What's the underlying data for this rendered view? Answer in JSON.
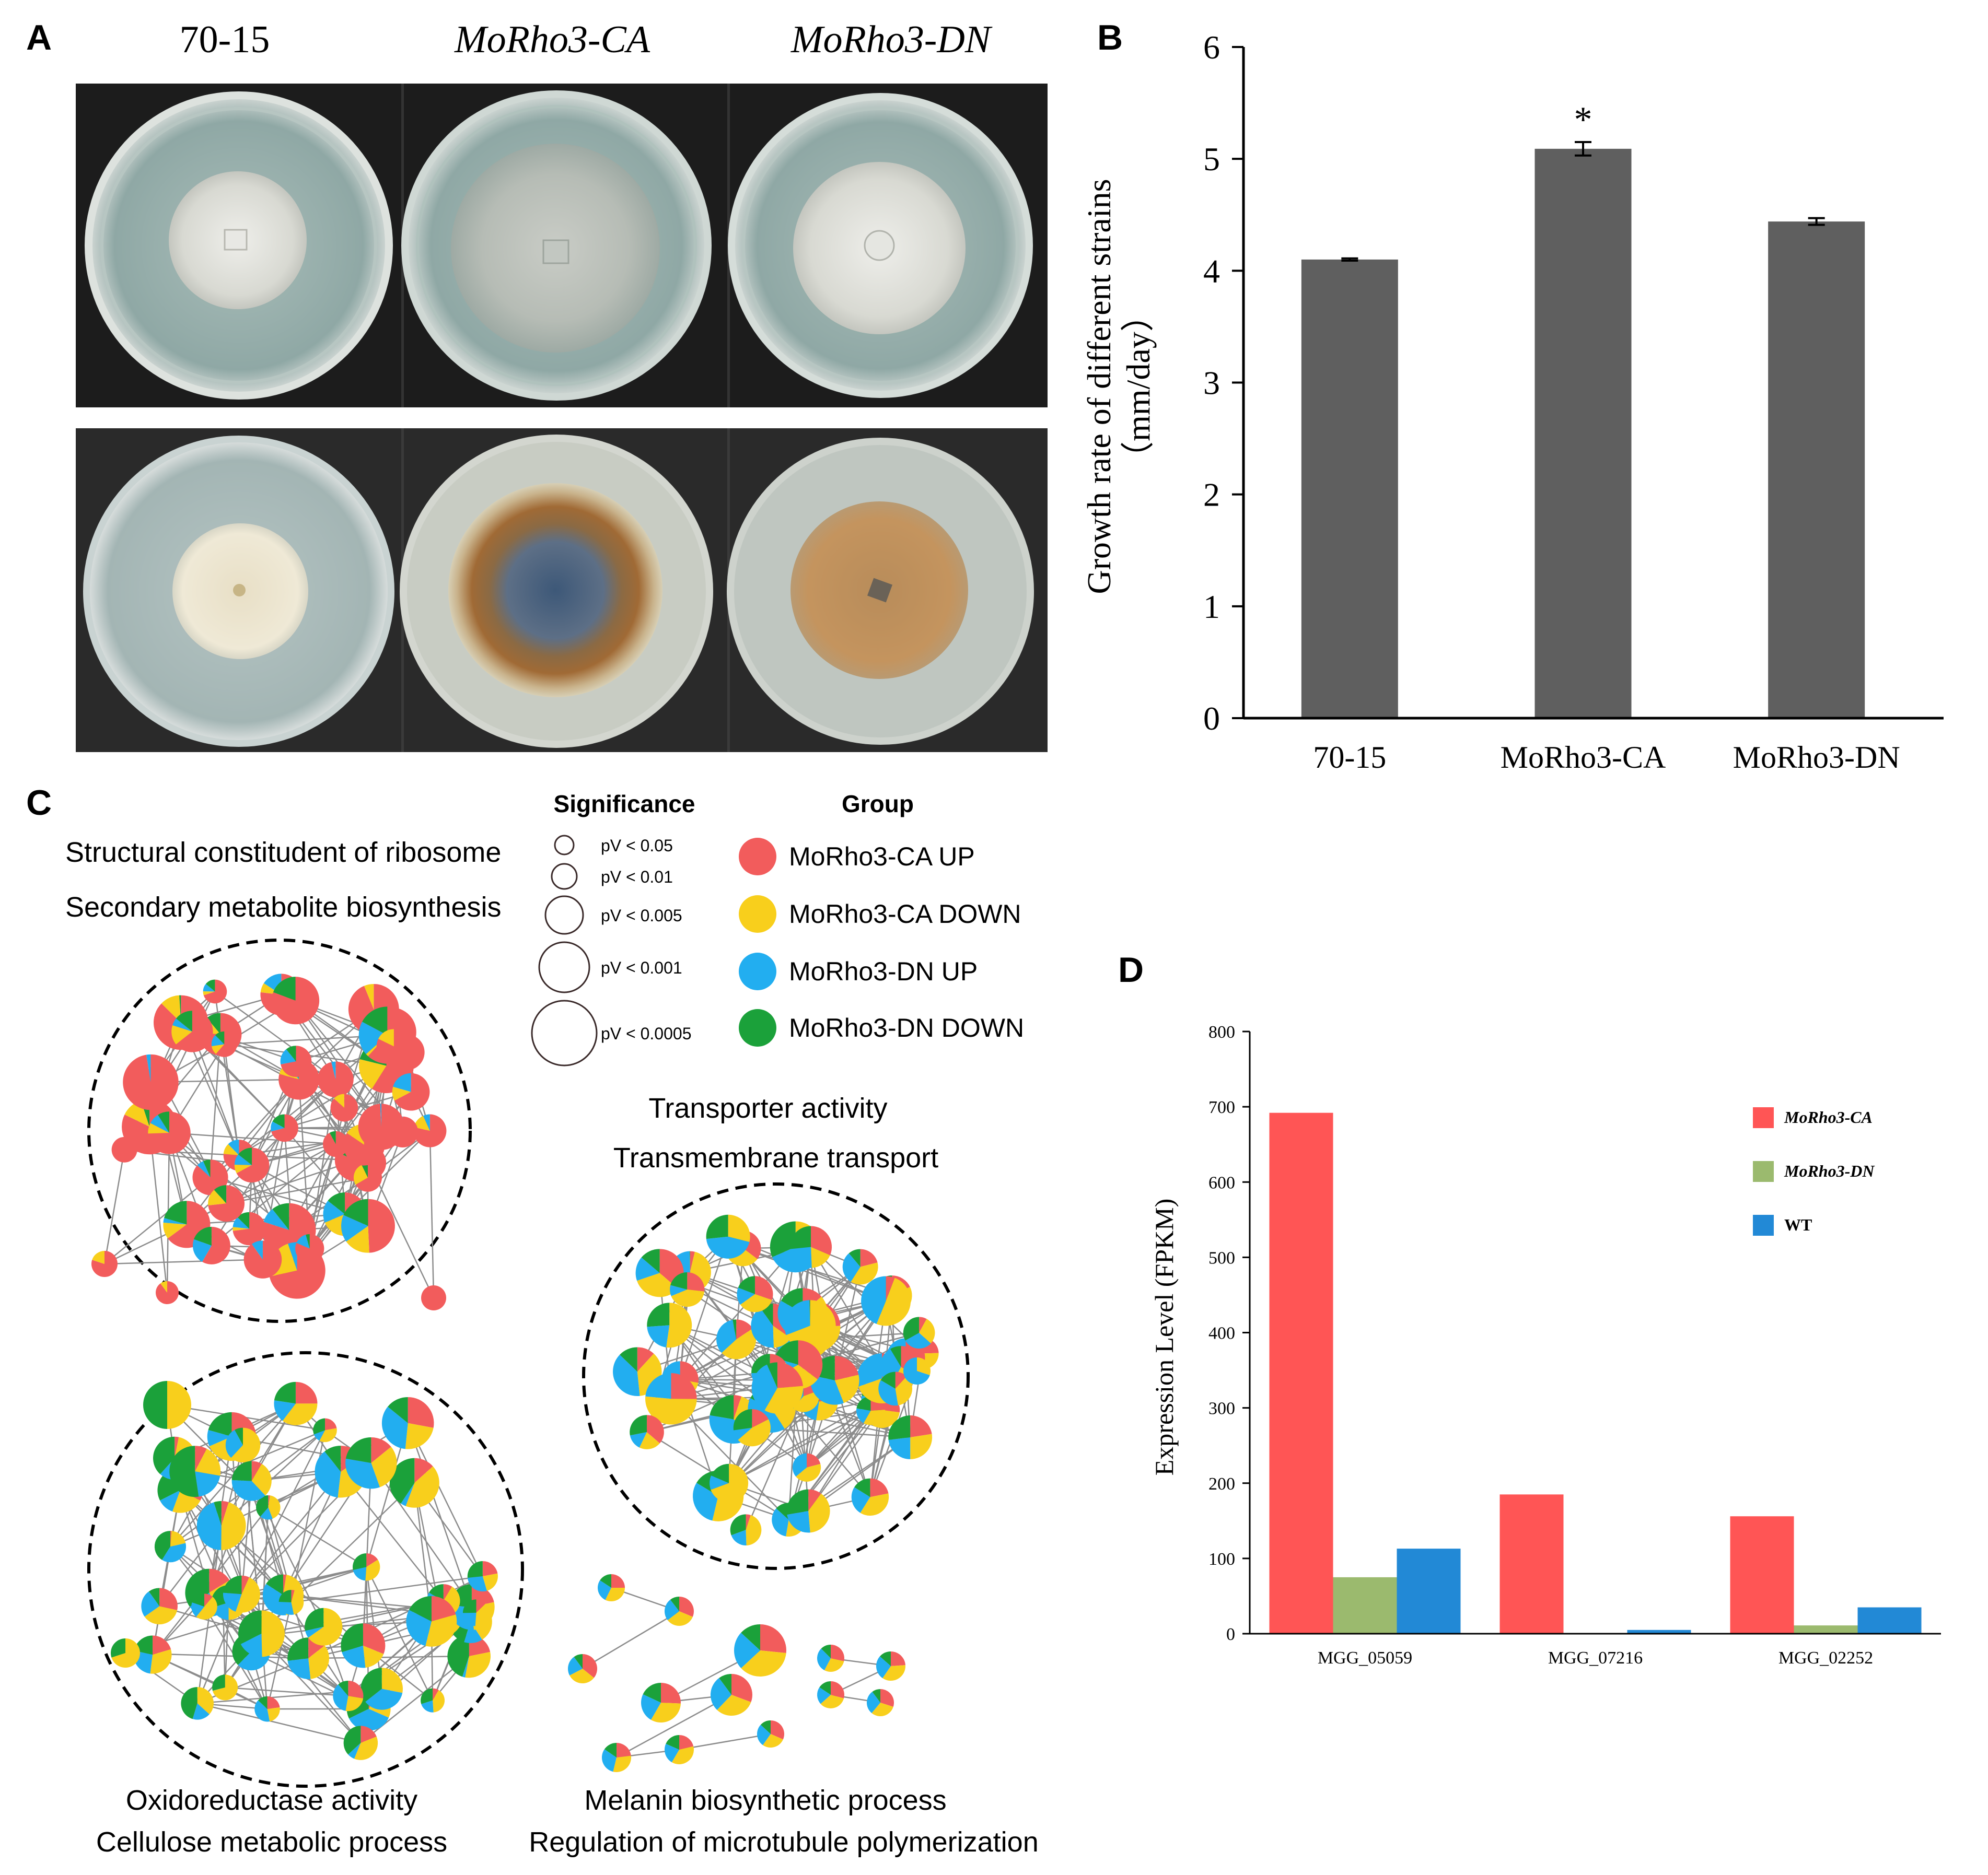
{
  "panels": {
    "a": "A",
    "b": "B",
    "c": "C",
    "d": "D"
  },
  "panel_a": {
    "strains": [
      "70-15",
      "MoRho3-CA",
      "MoRho3-DN"
    ]
  },
  "legend_c": {
    "significance_title": "Significance",
    "significance_items": [
      "pV < 0.05",
      "pV < 0.01",
      "pV < 0.005",
      "pV < 0.001",
      "pV < 0.0005"
    ],
    "group_title": "Group",
    "groups": [
      {
        "label": "MoRho3-CA UP",
        "color": "#f25c5c"
      },
      {
        "label": "MoRho3-CA DOWN",
        "color": "#f8cf1c"
      },
      {
        "label": "MoRho3-DN UP",
        "color": "#22aef0"
      },
      {
        "label": "MoRho3-DN DOWN",
        "color": "#1ba13a"
      }
    ]
  },
  "network_c": {
    "cluster1": [
      "Structural constitudent of ribosome",
      "Secondary metabolite biosynthesis"
    ],
    "cluster2": [
      "Transporter activity",
      "Transmembrane transport"
    ],
    "cluster3": [
      "Oxidoreductase activity",
      "Cellulose metabolic process"
    ],
    "cluster4": [
      "Melanin biosynthetic process",
      "Regulation of microtubule polymerization"
    ]
  },
  "chart_data": [
    {
      "type": "bar",
      "panel": "B",
      "categories": [
        "70-15",
        "MoRho3-CA",
        "MoRho3-DN"
      ],
      "values": [
        4.1,
        5.09,
        4.44
      ],
      "errors": [
        0.01,
        0.06,
        0.03
      ],
      "significance": [
        "",
        "*",
        ""
      ],
      "ylabel_line1": "Growth rate of different strains",
      "ylabel_line2": "（mm/day）",
      "ylim": [
        0,
        6
      ],
      "yticks": [
        "0",
        "1",
        "2",
        "3",
        "4",
        "5",
        "6"
      ],
      "bar_color": "#5f5f5f"
    },
    {
      "type": "bar",
      "panel": "D",
      "categories": [
        "MGG_05059",
        "MGG_07216",
        "MGG_02252"
      ],
      "series": [
        {
          "name": "MoRho3-CA",
          "color": "#ff5555",
          "values": [
            692,
            185,
            156
          ]
        },
        {
          "name": "MoRho3-DN",
          "color": "#9bba6e",
          "values": [
            75,
            0,
            11
          ]
        },
        {
          "name": "WT",
          "color": "#2289d6",
          "values": [
            113,
            5,
            35
          ]
        }
      ],
      "ylabel": "Expression Level (FPKM)",
      "ylim": [
        0,
        800
      ],
      "yticks": [
        "0",
        "100",
        "200",
        "300",
        "400",
        "500",
        "600",
        "700",
        "800"
      ]
    }
  ]
}
